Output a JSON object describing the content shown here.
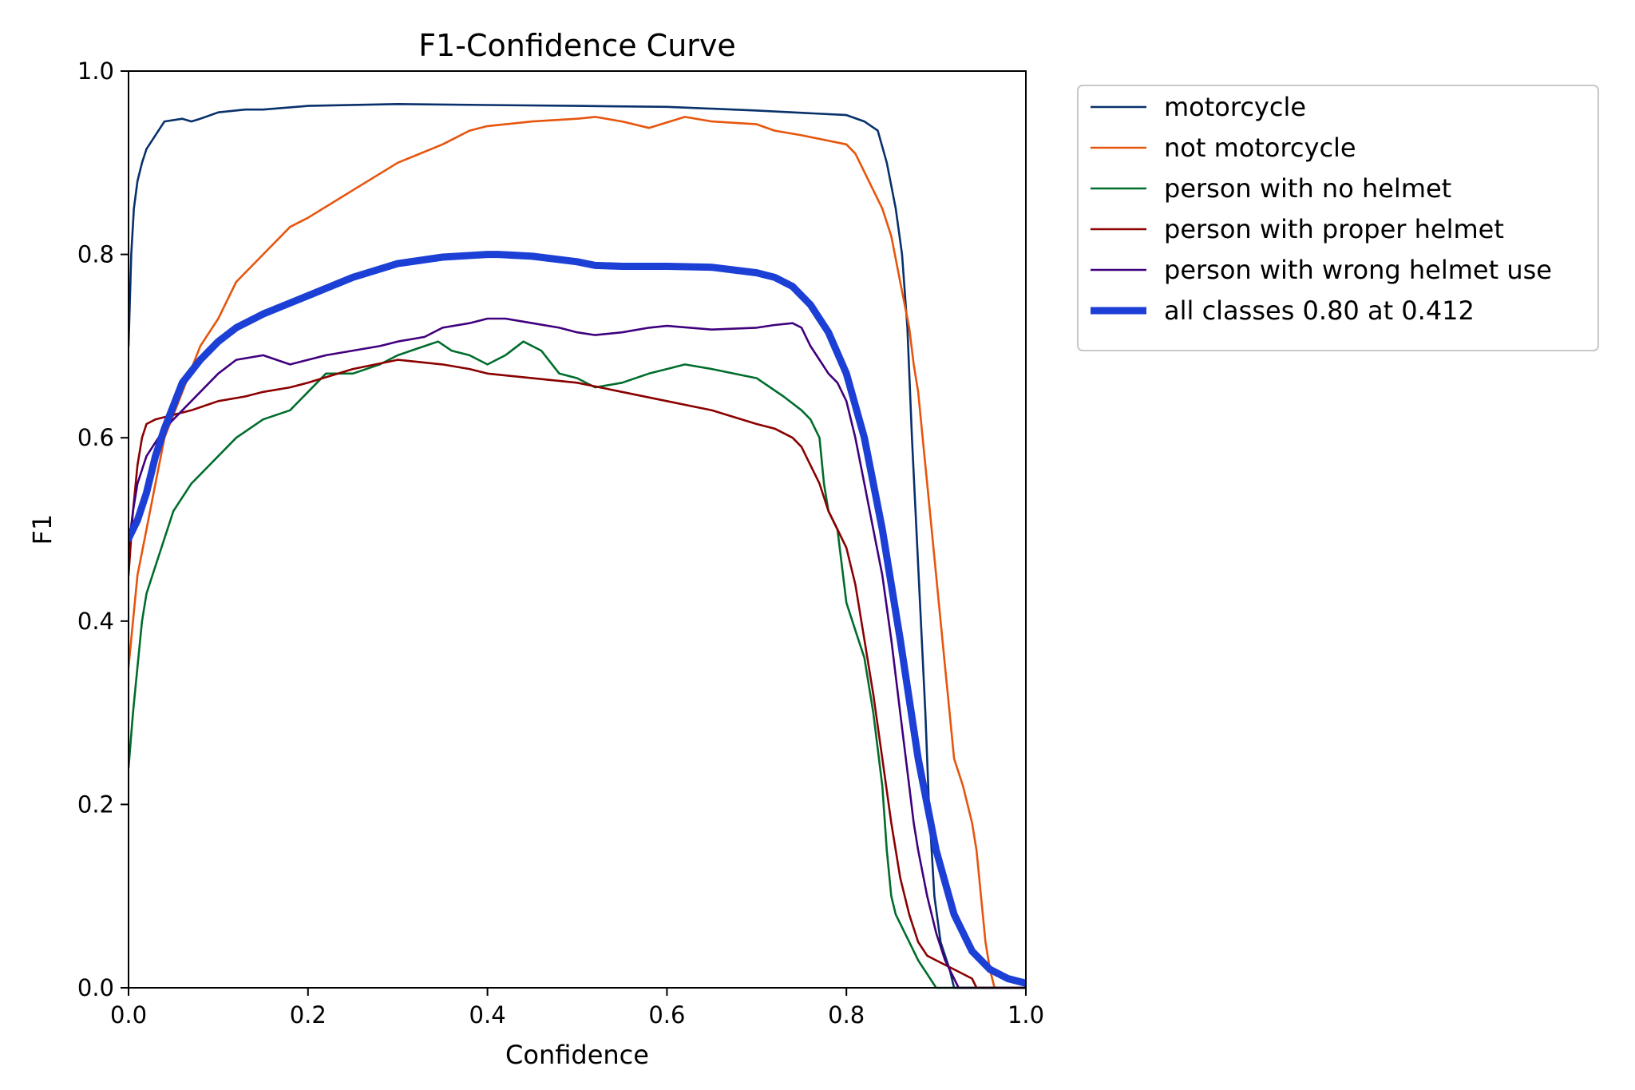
{
  "chart_data": {
    "type": "line",
    "title": "F1-Confidence Curve",
    "xlabel": "Confidence",
    "ylabel": "F1",
    "xlim": [
      0,
      1
    ],
    "ylim": [
      0,
      1
    ],
    "xticks": [
      "0.0",
      "0.2",
      "0.4",
      "0.6",
      "0.8",
      "1.0"
    ],
    "yticks": [
      "0.0",
      "0.2",
      "0.4",
      "0.6",
      "0.8",
      "1.0"
    ],
    "grid": false,
    "legend": "outside-upper-right",
    "series": [
      {
        "name": "motorcycle",
        "color": "#08306b",
        "thick": false,
        "points": [
          [
            0.0,
            0.7
          ],
          [
            0.003,
            0.8
          ],
          [
            0.006,
            0.85
          ],
          [
            0.01,
            0.88
          ],
          [
            0.015,
            0.9
          ],
          [
            0.02,
            0.915
          ],
          [
            0.03,
            0.93
          ],
          [
            0.04,
            0.945
          ],
          [
            0.06,
            0.948
          ],
          [
            0.07,
            0.945
          ],
          [
            0.08,
            0.948
          ],
          [
            0.1,
            0.955
          ],
          [
            0.13,
            0.958
          ],
          [
            0.15,
            0.958
          ],
          [
            0.2,
            0.962
          ],
          [
            0.3,
            0.964
          ],
          [
            0.4,
            0.963
          ],
          [
            0.5,
            0.962
          ],
          [
            0.6,
            0.961
          ],
          [
            0.65,
            0.959
          ],
          [
            0.7,
            0.957
          ],
          [
            0.74,
            0.955
          ],
          [
            0.8,
            0.952
          ],
          [
            0.82,
            0.945
          ],
          [
            0.835,
            0.935
          ],
          [
            0.845,
            0.9
          ],
          [
            0.855,
            0.85
          ],
          [
            0.862,
            0.8
          ],
          [
            0.868,
            0.72
          ],
          [
            0.873,
            0.6
          ],
          [
            0.878,
            0.5
          ],
          [
            0.883,
            0.4
          ],
          [
            0.888,
            0.3
          ],
          [
            0.892,
            0.2
          ],
          [
            0.898,
            0.1
          ],
          [
            0.905,
            0.05
          ],
          [
            0.915,
            0.02
          ],
          [
            0.92,
            0.0
          ],
          [
            1.0,
            0.0
          ]
        ]
      },
      {
        "name": "not motorcycle",
        "color": "#e6550d",
        "thick": false,
        "points": [
          [
            0.0,
            0.35
          ],
          [
            0.005,
            0.4
          ],
          [
            0.01,
            0.45
          ],
          [
            0.02,
            0.5
          ],
          [
            0.03,
            0.55
          ],
          [
            0.04,
            0.6
          ],
          [
            0.06,
            0.65
          ],
          [
            0.08,
            0.7
          ],
          [
            0.1,
            0.73
          ],
          [
            0.12,
            0.77
          ],
          [
            0.15,
            0.8
          ],
          [
            0.18,
            0.83
          ],
          [
            0.2,
            0.84
          ],
          [
            0.25,
            0.87
          ],
          [
            0.3,
            0.9
          ],
          [
            0.35,
            0.92
          ],
          [
            0.38,
            0.935
          ],
          [
            0.4,
            0.94
          ],
          [
            0.45,
            0.945
          ],
          [
            0.5,
            0.948
          ],
          [
            0.52,
            0.95
          ],
          [
            0.55,
            0.945
          ],
          [
            0.58,
            0.938
          ],
          [
            0.62,
            0.95
          ],
          [
            0.65,
            0.945
          ],
          [
            0.7,
            0.942
          ],
          [
            0.72,
            0.935
          ],
          [
            0.75,
            0.93
          ],
          [
            0.8,
            0.92
          ],
          [
            0.81,
            0.91
          ],
          [
            0.82,
            0.89
          ],
          [
            0.83,
            0.87
          ],
          [
            0.84,
            0.85
          ],
          [
            0.85,
            0.82
          ],
          [
            0.86,
            0.77
          ],
          [
            0.87,
            0.72
          ],
          [
            0.875,
            0.68
          ],
          [
            0.88,
            0.65
          ],
          [
            0.885,
            0.6
          ],
          [
            0.89,
            0.55
          ],
          [
            0.895,
            0.5
          ],
          [
            0.9,
            0.45
          ],
          [
            0.905,
            0.4
          ],
          [
            0.91,
            0.35
          ],
          [
            0.915,
            0.3
          ],
          [
            0.92,
            0.25
          ],
          [
            0.93,
            0.22
          ],
          [
            0.94,
            0.18
          ],
          [
            0.945,
            0.15
          ],
          [
            0.95,
            0.1
          ],
          [
            0.955,
            0.05
          ],
          [
            0.96,
            0.02
          ],
          [
            0.965,
            0.0
          ],
          [
            1.0,
            0.0
          ]
        ]
      },
      {
        "name": "person with no helmet",
        "color": "#006d2c",
        "thick": false,
        "points": [
          [
            0.0,
            0.24
          ],
          [
            0.005,
            0.3
          ],
          [
            0.01,
            0.35
          ],
          [
            0.015,
            0.4
          ],
          [
            0.02,
            0.43
          ],
          [
            0.03,
            0.46
          ],
          [
            0.05,
            0.52
          ],
          [
            0.07,
            0.55
          ],
          [
            0.09,
            0.57
          ],
          [
            0.1,
            0.58
          ],
          [
            0.12,
            0.6
          ],
          [
            0.15,
            0.62
          ],
          [
            0.18,
            0.63
          ],
          [
            0.2,
            0.65
          ],
          [
            0.22,
            0.67
          ],
          [
            0.25,
            0.67
          ],
          [
            0.28,
            0.68
          ],
          [
            0.3,
            0.69
          ],
          [
            0.33,
            0.7
          ],
          [
            0.345,
            0.705
          ],
          [
            0.36,
            0.695
          ],
          [
            0.38,
            0.69
          ],
          [
            0.4,
            0.68
          ],
          [
            0.42,
            0.69
          ],
          [
            0.44,
            0.705
          ],
          [
            0.46,
            0.695
          ],
          [
            0.48,
            0.67
          ],
          [
            0.5,
            0.665
          ],
          [
            0.52,
            0.655
          ],
          [
            0.55,
            0.66
          ],
          [
            0.58,
            0.67
          ],
          [
            0.6,
            0.675
          ],
          [
            0.62,
            0.68
          ],
          [
            0.65,
            0.675
          ],
          [
            0.7,
            0.665
          ],
          [
            0.73,
            0.645
          ],
          [
            0.75,
            0.63
          ],
          [
            0.76,
            0.62
          ],
          [
            0.77,
            0.6
          ],
          [
            0.775,
            0.55
          ],
          [
            0.78,
            0.52
          ],
          [
            0.79,
            0.5
          ],
          [
            0.795,
            0.46
          ],
          [
            0.8,
            0.42
          ],
          [
            0.81,
            0.39
          ],
          [
            0.82,
            0.36
          ],
          [
            0.83,
            0.3
          ],
          [
            0.84,
            0.22
          ],
          [
            0.845,
            0.15
          ],
          [
            0.85,
            0.1
          ],
          [
            0.855,
            0.08
          ],
          [
            0.86,
            0.07
          ],
          [
            0.87,
            0.05
          ],
          [
            0.88,
            0.03
          ],
          [
            0.89,
            0.015
          ],
          [
            0.9,
            0.0
          ],
          [
            1.0,
            0.0
          ]
        ]
      },
      {
        "name": "person with proper helmet",
        "color": "#8b0000",
        "thick": false,
        "points": [
          [
            0.0,
            0.45
          ],
          [
            0.005,
            0.52
          ],
          [
            0.01,
            0.57
          ],
          [
            0.015,
            0.6
          ],
          [
            0.02,
            0.615
          ],
          [
            0.03,
            0.62
          ],
          [
            0.05,
            0.625
          ],
          [
            0.07,
            0.63
          ],
          [
            0.1,
            0.64
          ],
          [
            0.13,
            0.645
          ],
          [
            0.15,
            0.65
          ],
          [
            0.18,
            0.655
          ],
          [
            0.2,
            0.66
          ],
          [
            0.25,
            0.675
          ],
          [
            0.3,
            0.685
          ],
          [
            0.35,
            0.68
          ],
          [
            0.38,
            0.675
          ],
          [
            0.4,
            0.67
          ],
          [
            0.45,
            0.665
          ],
          [
            0.5,
            0.66
          ],
          [
            0.55,
            0.65
          ],
          [
            0.6,
            0.64
          ],
          [
            0.65,
            0.63
          ],
          [
            0.7,
            0.615
          ],
          [
            0.72,
            0.61
          ],
          [
            0.74,
            0.6
          ],
          [
            0.75,
            0.59
          ],
          [
            0.76,
            0.57
          ],
          [
            0.77,
            0.55
          ],
          [
            0.78,
            0.52
          ],
          [
            0.79,
            0.5
          ],
          [
            0.8,
            0.48
          ],
          [
            0.81,
            0.44
          ],
          [
            0.82,
            0.38
          ],
          [
            0.83,
            0.32
          ],
          [
            0.84,
            0.25
          ],
          [
            0.85,
            0.18
          ],
          [
            0.86,
            0.12
          ],
          [
            0.87,
            0.08
          ],
          [
            0.88,
            0.05
          ],
          [
            0.89,
            0.035
          ],
          [
            0.9,
            0.03
          ],
          [
            0.92,
            0.02
          ],
          [
            0.94,
            0.01
          ],
          [
            0.945,
            0.0
          ],
          [
            1.0,
            0.0
          ]
        ]
      },
      {
        "name": "person with wrong helmet use",
        "color": "#3f007d",
        "thick": false,
        "points": [
          [
            0.0,
            0.48
          ],
          [
            0.005,
            0.52
          ],
          [
            0.01,
            0.55
          ],
          [
            0.02,
            0.58
          ],
          [
            0.04,
            0.61
          ],
          [
            0.06,
            0.63
          ],
          [
            0.08,
            0.65
          ],
          [
            0.1,
            0.67
          ],
          [
            0.12,
            0.685
          ],
          [
            0.15,
            0.69
          ],
          [
            0.18,
            0.68
          ],
          [
            0.2,
            0.685
          ],
          [
            0.22,
            0.69
          ],
          [
            0.25,
            0.695
          ],
          [
            0.28,
            0.7
          ],
          [
            0.3,
            0.705
          ],
          [
            0.33,
            0.71
          ],
          [
            0.35,
            0.72
          ],
          [
            0.38,
            0.725
          ],
          [
            0.4,
            0.73
          ],
          [
            0.42,
            0.73
          ],
          [
            0.45,
            0.725
          ],
          [
            0.48,
            0.72
          ],
          [
            0.5,
            0.715
          ],
          [
            0.52,
            0.712
          ],
          [
            0.55,
            0.715
          ],
          [
            0.58,
            0.72
          ],
          [
            0.6,
            0.722
          ],
          [
            0.65,
            0.718
          ],
          [
            0.7,
            0.72
          ],
          [
            0.72,
            0.723
          ],
          [
            0.74,
            0.725
          ],
          [
            0.75,
            0.72
          ],
          [
            0.76,
            0.7
          ],
          [
            0.77,
            0.685
          ],
          [
            0.78,
            0.67
          ],
          [
            0.79,
            0.66
          ],
          [
            0.8,
            0.64
          ],
          [
            0.81,
            0.6
          ],
          [
            0.82,
            0.55
          ],
          [
            0.83,
            0.5
          ],
          [
            0.84,
            0.45
          ],
          [
            0.85,
            0.38
          ],
          [
            0.86,
            0.3
          ],
          [
            0.87,
            0.22
          ],
          [
            0.875,
            0.18
          ],
          [
            0.88,
            0.15
          ],
          [
            0.89,
            0.1
          ],
          [
            0.9,
            0.06
          ],
          [
            0.91,
            0.03
          ],
          [
            0.92,
            0.01
          ],
          [
            0.925,
            0.0
          ],
          [
            1.0,
            0.0
          ]
        ]
      },
      {
        "name": "all classes 0.80 at 0.412",
        "color": "#1c3fd6",
        "thick": true,
        "points": [
          [
            0.0,
            0.49
          ],
          [
            0.01,
            0.51
          ],
          [
            0.02,
            0.54
          ],
          [
            0.03,
            0.58
          ],
          [
            0.04,
            0.61
          ],
          [
            0.05,
            0.635
          ],
          [
            0.06,
            0.66
          ],
          [
            0.08,
            0.685
          ],
          [
            0.1,
            0.705
          ],
          [
            0.12,
            0.72
          ],
          [
            0.15,
            0.735
          ],
          [
            0.2,
            0.755
          ],
          [
            0.25,
            0.775
          ],
          [
            0.3,
            0.79
          ],
          [
            0.35,
            0.797
          ],
          [
            0.4,
            0.8
          ],
          [
            0.412,
            0.8
          ],
          [
            0.45,
            0.798
          ],
          [
            0.5,
            0.792
          ],
          [
            0.52,
            0.788
          ],
          [
            0.55,
            0.787
          ],
          [
            0.6,
            0.787
          ],
          [
            0.65,
            0.786
          ],
          [
            0.7,
            0.78
          ],
          [
            0.72,
            0.775
          ],
          [
            0.74,
            0.765
          ],
          [
            0.76,
            0.745
          ],
          [
            0.78,
            0.715
          ],
          [
            0.8,
            0.67
          ],
          [
            0.82,
            0.6
          ],
          [
            0.84,
            0.5
          ],
          [
            0.86,
            0.38
          ],
          [
            0.88,
            0.25
          ],
          [
            0.9,
            0.15
          ],
          [
            0.92,
            0.08
          ],
          [
            0.94,
            0.04
          ],
          [
            0.96,
            0.02
          ],
          [
            0.98,
            0.01
          ],
          [
            1.0,
            0.005
          ]
        ]
      }
    ]
  }
}
